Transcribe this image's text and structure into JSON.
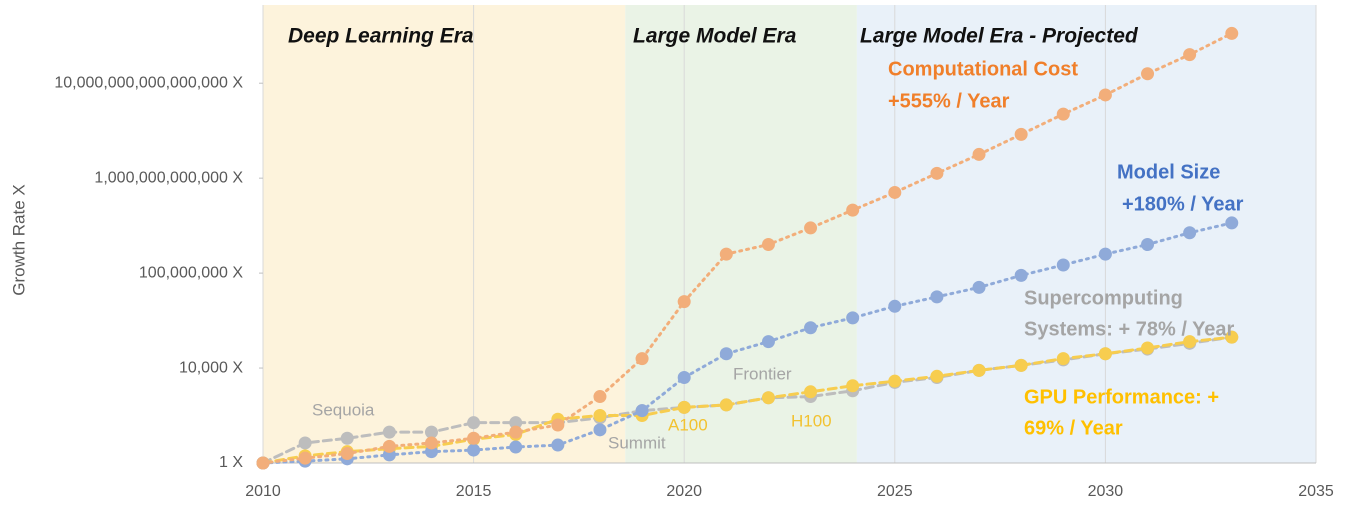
{
  "chart_data": {
    "type": "line",
    "y_label": "Growth Rate X",
    "log_y": true,
    "grid": "x",
    "eras": [
      {
        "label": "Deep Learning Era",
        "start": 2010,
        "end": 2018.6,
        "color": "#fdf3dc"
      },
      {
        "label": "Large Model Era",
        "start": 2018.6,
        "end": 2024.1,
        "color": "#eaf3e6"
      },
      {
        "label": "Large Model Era - Projected",
        "start": 2024.1,
        "end": 2035,
        "color": "#e9f1f9"
      }
    ],
    "x": [
      2010,
      2011,
      2012,
      2013,
      2014,
      2015,
      2016,
      2017,
      2018,
      2019,
      2020,
      2021,
      2022,
      2023,
      2024,
      2025,
      2026,
      2027,
      2028,
      2029,
      2030,
      2031,
      2032,
      2033
    ],
    "xlim": [
      2010,
      2035
    ],
    "xticks": [
      2010,
      2015,
      2020,
      2025,
      2030,
      2035
    ],
    "ylim": [
      1,
      10000000000000000000
    ],
    "yticks": [
      {
        "value": 1,
        "label": "1 X"
      },
      {
        "value": 10000,
        "label": "10,000 X"
      },
      {
        "value": 100000000,
        "label": "100,000,000 X"
      },
      {
        "value": 1000000000000,
        "label": "1,000,000,000,000 X"
      },
      {
        "value": 10000000000000000,
        "label": "10,000,000,000,000,000 X"
      }
    ],
    "series": [
      {
        "name": "Supercomputing Systems",
        "color": "#bdbdbd",
        "dash": "8 5",
        "values": [
          1,
          7,
          11,
          20,
          20,
          50,
          50,
          50,
          80,
          160,
          220,
          280,
          560,
          630,
          1100,
          2500,
          4000,
          8000,
          13000,
          22000,
          40000,
          63000,
          110000,
          200000
        ]
      },
      {
        "name": "GPU Performance",
        "color": "#f7cd4f",
        "dash": "8 5",
        "values": [
          1,
          2,
          3,
          4,
          5,
          10,
          16,
          70,
          100,
          100,
          220,
          280,
          560,
          1000,
          1800,
          2800,
          4500,
          8000,
          13000,
          25000,
          40000,
          70000,
          130000,
          200000
        ]
      },
      {
        "name": "Model Size",
        "color": "#8faad9",
        "dash": "2 5",
        "values": [
          1,
          1.2,
          1.5,
          2.2,
          3,
          3.5,
          4.7,
          5.7,
          25,
          160,
          4000,
          40000,
          130000,
          500000,
          1300000,
          4000000,
          10000000,
          25000000,
          80000000,
          220000000,
          630000000,
          1600000000,
          5000000000,
          13000000000
        ]
      },
      {
        "name": "Computational Cost",
        "color": "#f2ae7a",
        "dash": "2 5",
        "values": [
          1,
          1.6,
          2.5,
          5,
          7,
          11,
          20,
          40,
          630,
          25000,
          6300000,
          630000000,
          1600000000,
          8000000000,
          45000000000,
          250000000000,
          1600000000000,
          10000000000000,
          70000000000000,
          500000000000000,
          3200000000000000,
          25000000000000000,
          160000000000000000,
          1250000000000000000
        ]
      }
    ],
    "annotations": [
      {
        "text": "Computational Cost",
        "color": "#f07f2a"
      },
      {
        "text": "+555% / Year",
        "color": "#f07f2a"
      },
      {
        "text": "Model Size",
        "color": "#4472c4"
      },
      {
        "text": "+180% / Year",
        "color": "#4472c4"
      },
      {
        "text": "Supercomputing",
        "color": "#a5a5a5"
      },
      {
        "text": "Systems: + 78% / Year",
        "color": "#a5a5a5"
      },
      {
        "text": "GPU Performance: +",
        "color": "#ffc000"
      },
      {
        "text": "69% / Year",
        "color": "#ffc000"
      }
    ],
    "point_labels": [
      {
        "text": "Sequoia",
        "color": "#a5a5a5"
      },
      {
        "text": "Summit",
        "color": "#a5a5a5"
      },
      {
        "text": "Frontier",
        "color": "#a5a5a5"
      },
      {
        "text": "A100",
        "color": "#f2c230"
      },
      {
        "text": "H100",
        "color": "#f2c230"
      }
    ]
  }
}
